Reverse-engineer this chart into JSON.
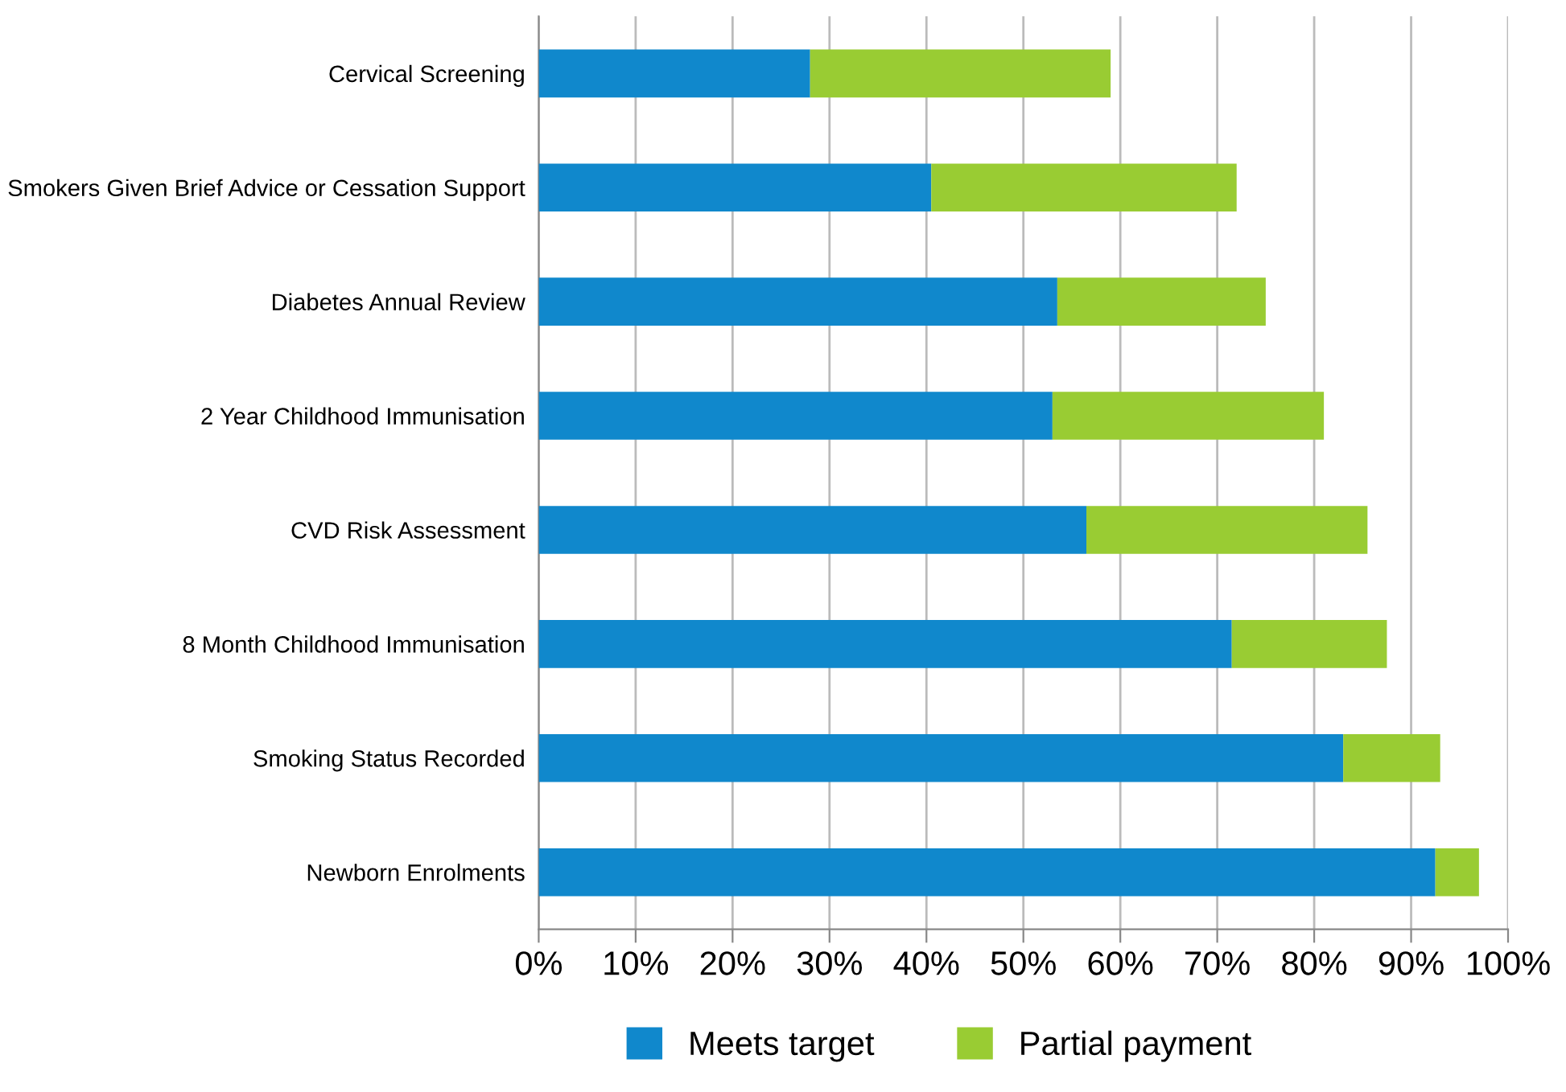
{
  "chart_data": {
    "type": "bar",
    "orientation": "horizontal",
    "stacked": true,
    "categories": [
      "Cervical Screening",
      "Smokers Given Brief Advice or Cessation Support",
      "Diabetes Annual Review",
      "2 Year Childhood Immunisation",
      "CVD Risk Assessment",
      "8 Month Childhood Immunisation",
      "Smoking Status Recorded",
      "Newborn Enrolments"
    ],
    "series": [
      {
        "name": "Meets target",
        "color": "#1088cc",
        "values": [
          28,
          40.5,
          53.5,
          53,
          56.5,
          71.5,
          83,
          92.5
        ]
      },
      {
        "name": "Partial payment",
        "color": "#99cc33",
        "values": [
          31,
          31.5,
          21.5,
          28,
          29,
          16,
          10,
          4.5
        ]
      }
    ],
    "xlim": [
      0,
      100
    ],
    "xticks": [
      {
        "value": 0,
        "label": "0%"
      },
      {
        "value": 10,
        "label": "10%"
      },
      {
        "value": 20,
        "label": "20%"
      },
      {
        "value": 30,
        "label": "30%"
      },
      {
        "value": 40,
        "label": "40%"
      },
      {
        "value": 50,
        "label": "50%"
      },
      {
        "value": 60,
        "label": "60%"
      },
      {
        "value": 70,
        "label": "70%"
      },
      {
        "value": 80,
        "label": "80%"
      },
      {
        "value": 90,
        "label": "90%"
      },
      {
        "value": 100,
        "label": "100%"
      }
    ],
    "grid": "x",
    "legend": "bottom"
  }
}
